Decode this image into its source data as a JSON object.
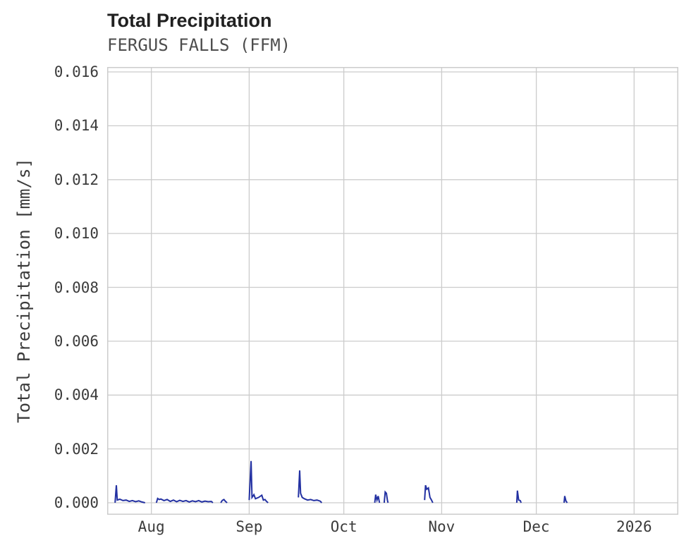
{
  "title": "Total Precipitation",
  "subtitle": "FERGUS FALLS (FFM)",
  "colors": {
    "line": "#2331a2",
    "grid": "#cccccc",
    "title": "#212121",
    "subtitle": "#4d4d4d",
    "tick": "#3b3b3b",
    "background": "#ffffff"
  },
  "chart_data": {
    "type": "line",
    "title": "Total Precipitation",
    "subtitle": "FERGUS FALLS (FFM)",
    "xlabel": "",
    "ylabel": "Total Precipitation [mm/s]",
    "ylim": [
      0,
      0.016
    ],
    "grid": true,
    "legend": "none",
    "y_ticks": [
      {
        "label": "0.000",
        "value": 0.0
      },
      {
        "label": "0.002",
        "value": 0.002
      },
      {
        "label": "0.004",
        "value": 0.004
      },
      {
        "label": "0.006",
        "value": 0.006
      },
      {
        "label": "0.008",
        "value": 0.008
      },
      {
        "label": "0.010",
        "value": 0.01
      },
      {
        "label": "0.012",
        "value": 0.012
      },
      {
        "label": "0.014",
        "value": 0.014
      },
      {
        "label": "0.016",
        "value": 0.016
      }
    ],
    "x_unit": "day offset across plotted range (Jul through Jan)",
    "x_range_days": 181,
    "x_ticks": [
      {
        "label": "Aug",
        "day": 14
      },
      {
        "label": "Sep",
        "day": 45
      },
      {
        "label": "Oct",
        "day": 75
      },
      {
        "label": "Nov",
        "day": 106
      },
      {
        "label": "Dec",
        "day": 136
      },
      {
        "label": "2026",
        "day": 167
      }
    ],
    "series": [
      {
        "name": "Total Precipitation [mm/s]",
        "color": "#2331a2",
        "points": [
          [
            2.5,
            0
          ],
          [
            2.9,
            0.00065
          ],
          [
            3.2,
            0.0001
          ],
          [
            4,
            0.00013
          ],
          [
            5,
            8e-05
          ],
          [
            6,
            0.0001
          ],
          [
            7,
            5e-05
          ],
          [
            8,
            8e-05
          ],
          [
            9,
            4e-05
          ],
          [
            10,
            7e-05
          ],
          [
            11,
            3e-05
          ],
          [
            12,
            0
          ],
          null,
          [
            15.6,
            0
          ],
          [
            16,
            0.00016
          ],
          [
            16.5,
            0.00012
          ],
          [
            17,
            0.00014
          ],
          [
            18,
            8e-05
          ],
          [
            19,
            0.00012
          ],
          [
            20,
            5e-05
          ],
          [
            21,
            0.0001
          ],
          [
            22,
            4e-05
          ],
          [
            23,
            9e-05
          ],
          [
            24,
            5e-05
          ],
          [
            25,
            8e-05
          ],
          [
            26,
            3e-05
          ],
          [
            27,
            7e-05
          ],
          [
            28,
            4e-05
          ],
          [
            29,
            8e-05
          ],
          [
            30,
            3e-05
          ],
          [
            31,
            6e-05
          ],
          [
            32,
            4e-05
          ],
          [
            33,
            5e-05
          ],
          [
            33.5,
            0
          ],
          null,
          [
            36,
            0
          ],
          [
            36.5,
            9e-05
          ],
          [
            37,
            0.00012
          ],
          [
            37.5,
            5e-05
          ],
          [
            38,
            0
          ],
          null,
          [
            45,
            0.0001
          ],
          [
            45.6,
            0.00155
          ],
          [
            45.9,
            0.0002
          ],
          [
            46.5,
            0.0003
          ],
          [
            47,
            0.00015
          ],
          [
            48,
            0.0002
          ],
          [
            49,
            0.00028
          ],
          [
            49.5,
            0.0001
          ],
          [
            50,
            0.00012
          ],
          [
            50.5,
            5e-05
          ],
          [
            51,
            0
          ],
          null,
          [
            60.6,
            0.0002
          ],
          [
            61,
            0.0012
          ],
          [
            61.3,
            0.00035
          ],
          [
            61.8,
            0.0002
          ],
          [
            62.5,
            0.00015
          ],
          [
            63.5,
            0.0001
          ],
          [
            64.5,
            0.00012
          ],
          [
            65.5,
            8e-05
          ],
          [
            66.5,
            0.0001
          ],
          [
            67.5,
            6e-05
          ],
          [
            68,
            0
          ],
          null,
          [
            84.8,
            0
          ],
          [
            85.1,
            0.0003
          ],
          [
            85.5,
            0.0001
          ],
          [
            85.9,
            0.00025
          ],
          [
            86.3,
            0
          ],
          null,
          [
            87.8,
            0
          ],
          [
            88.1,
            0.0004
          ],
          [
            88.5,
            0.00035
          ],
          [
            88.8,
            0.0001
          ],
          [
            89,
            0
          ],
          null,
          [
            100.6,
            0.0001
          ],
          [
            100.9,
            0.00065
          ],
          [
            101.3,
            0.0005
          ],
          [
            101.8,
            0.00055
          ],
          [
            102.3,
            0.0002
          ],
          [
            102.8,
            0.0001
          ],
          [
            103.2,
            0
          ],
          null,
          [
            129.8,
            0
          ],
          [
            130,
            0.00045
          ],
          [
            130.4,
            0.0001
          ],
          [
            130.9,
            8e-05
          ],
          [
            131.2,
            0
          ],
          null,
          [
            144.8,
            0
          ],
          [
            145,
            0.00025
          ],
          [
            145.4,
            6e-05
          ],
          [
            145.8,
            0
          ]
        ]
      }
    ]
  }
}
